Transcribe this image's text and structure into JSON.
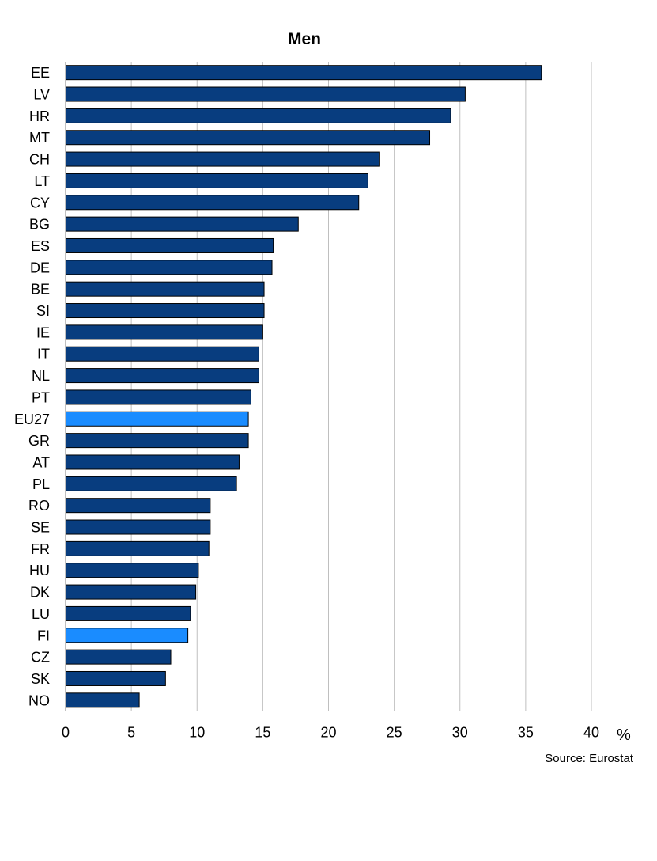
{
  "chart_data": {
    "type": "bar",
    "orientation": "horizontal",
    "title": "Men",
    "unit_label": "%",
    "source": "Source: Eurostat",
    "categories": [
      "EE",
      "LV",
      "HR",
      "MT",
      "CH",
      "LT",
      "CY",
      "BG",
      "ES",
      "DE",
      "BE",
      "SI",
      "IE",
      "IT",
      "NL",
      "PT",
      "EU27",
      "GR",
      "AT",
      "PL",
      "RO",
      "SE",
      "FR",
      "HU",
      "DK",
      "LU",
      "FI",
      "CZ",
      "SK",
      "NO"
    ],
    "values": [
      36.2,
      30.4,
      29.3,
      27.7,
      23.9,
      23.0,
      22.3,
      17.7,
      15.8,
      15.7,
      15.1,
      15.1,
      15.0,
      14.7,
      14.7,
      14.1,
      13.9,
      13.9,
      13.2,
      13.0,
      11.0,
      11.0,
      10.9,
      10.1,
      9.9,
      9.5,
      9.3,
      8.0,
      7.6,
      5.6
    ],
    "highlighted": [
      "EU27",
      "FI"
    ],
    "xlim": [
      0,
      40
    ],
    "xticks": [
      0,
      5,
      10,
      15,
      20,
      25,
      30,
      35,
      40
    ],
    "grid": true,
    "colors": {
      "bar": "#083d7f",
      "highlight": "#1a8cff",
      "grid": "#bfbfbf",
      "axis": "#808080",
      "bar_stroke": "#000000"
    }
  }
}
